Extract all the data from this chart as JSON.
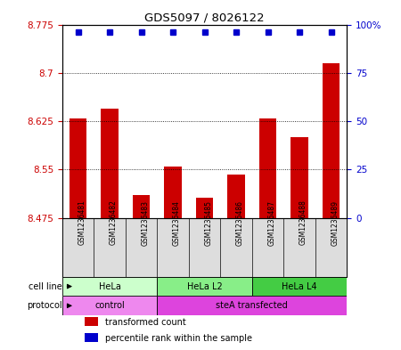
{
  "title": "GDS5097 / 8026122",
  "samples": [
    "GSM1236481",
    "GSM1236482",
    "GSM1236483",
    "GSM1236484",
    "GSM1236485",
    "GSM1236486",
    "GSM1236487",
    "GSM1236488",
    "GSM1236489"
  ],
  "bar_values": [
    8.63,
    8.645,
    8.51,
    8.555,
    8.507,
    8.543,
    8.63,
    8.6,
    8.715
  ],
  "percentile_values": [
    96,
    96,
    96,
    96,
    96,
    96,
    96,
    96,
    96
  ],
  "ymin": 8.475,
  "ymax": 8.775,
  "y_ticks": [
    8.475,
    8.55,
    8.625,
    8.7,
    8.775
  ],
  "y_ticks_labels": [
    "8.475",
    "8.55",
    "8.625",
    "8.7",
    "8.775"
  ],
  "y2_ticks": [
    0,
    25,
    50,
    75,
    100
  ],
  "y2_ticks_labels": [
    "0",
    "25",
    "50",
    "75",
    "100%"
  ],
  "bar_color": "#cc0000",
  "dot_color": "#0000cc",
  "bar_width": 0.55,
  "cell_line_groups": [
    {
      "label": "HeLa",
      "start": 0,
      "end": 3,
      "color": "#ccffcc"
    },
    {
      "label": "HeLa L2",
      "start": 3,
      "end": 6,
      "color": "#88ee88"
    },
    {
      "label": "HeLa L4",
      "start": 6,
      "end": 9,
      "color": "#44cc44"
    }
  ],
  "protocol_groups": [
    {
      "label": "control",
      "start": 0,
      "end": 3,
      "color": "#ee88ee"
    },
    {
      "label": "steA transfected",
      "start": 3,
      "end": 9,
      "color": "#dd44dd"
    }
  ],
  "legend_items": [
    {
      "color": "#cc0000",
      "label": "transformed count"
    },
    {
      "color": "#0000cc",
      "label": "percentile rank within the sample"
    }
  ],
  "cell_line_label": "cell line",
  "protocol_label": "protocol",
  "bg_color": "#ffffff",
  "tick_color_left": "#cc0000",
  "tick_color_right": "#0000cc",
  "sample_box_color": "#dddddd",
  "y2min": 0,
  "y2max": 100
}
